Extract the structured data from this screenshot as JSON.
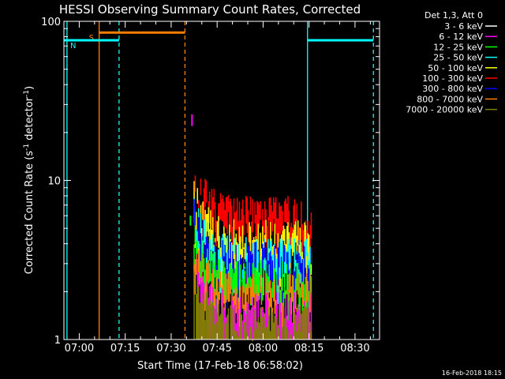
{
  "chart_data": {
    "type": "line",
    "title": "HESSI Observing Summary Count Rates, Corrected",
    "xlabel": "Start Time (17-Feb-18 06:58:02)",
    "ylabel": "Corrected Count Rate (s",
    "ylabel_sup1": "-1",
    "ylabel_mid": " detector",
    "ylabel_sup2": "-1",
    "ylabel_end": ")",
    "y_scale": "log",
    "ylim": [
      1,
      100
    ],
    "xlim_minutes": [
      -5,
      98
    ],
    "x_ticks": [
      {
        "label": "07:00",
        "min": 0
      },
      {
        "label": "07:15",
        "min": 15
      },
      {
        "label": "07:30",
        "min": 30
      },
      {
        "label": "07:45",
        "min": 45
      },
      {
        "label": "08:00",
        "min": 60
      },
      {
        "label": "08:15",
        "min": 75
      },
      {
        "label": "08:30",
        "min": 90
      }
    ],
    "y_ticks": [
      {
        "label": "1",
        "value": 1
      },
      {
        "label": "10",
        "value": 10
      },
      {
        "label": "100",
        "value": 100
      }
    ],
    "legend": {
      "header": "Det 1,3, Att 0",
      "placement": "right"
    },
    "series": [
      {
        "name": "3 - 6 keV",
        "color": "#ffffff",
        "level": 9
      },
      {
        "name": "6 - 12 keV",
        "color": "#ff00ff",
        "level": 1.6
      },
      {
        "name": "12 - 25 keV",
        "color": "#00ff00",
        "level": 2.6
      },
      {
        "name": "25 - 50 keV",
        "color": "#00ffff",
        "level": 3.6
      },
      {
        "name": "50 - 100 keV",
        "color": "#ffff00",
        "level": 4.6
      },
      {
        "name": "100 - 300 keV",
        "color": "#ff0000",
        "level": 6.4
      },
      {
        "name": "300 - 800 keV",
        "color": "#0000ff",
        "level": 3.4
      },
      {
        "name": "800 - 7000 keV",
        "color": "#ff8000",
        "level": 2.1
      },
      {
        "name": "7000 - 20000 keV",
        "color": "#808000",
        "level": 1.3
      }
    ],
    "burst": {
      "start_min": 37.5,
      "end_min": 76,
      "peak": 12
    },
    "annotations": [
      {
        "label": "S",
        "color": "#ff8000",
        "start_min": 6.5,
        "end_min": 34.5,
        "value": 85
      },
      {
        "label": "N",
        "color": "#00ffff",
        "start_min": -5,
        "end_min": 13,
        "value": 76
      },
      {
        "label": "",
        "color": "#00ffff",
        "start_min": 74.5,
        "end_min": 96,
        "value": 76
      }
    ],
    "vlines": [
      {
        "min": -4,
        "color": "#00ffff",
        "dashed": false
      },
      {
        "min": 6.5,
        "color": "#ff8000",
        "dashed": false
      },
      {
        "min": 13,
        "color": "#00ffff",
        "dashed": true
      },
      {
        "min": 34.5,
        "color": "#ff8000",
        "dashed": true
      },
      {
        "min": 74.5,
        "color": "#00ffff",
        "dashed": false
      },
      {
        "min": 96,
        "color": "#00ffff",
        "dashed": true
      }
    ],
    "grid": false
  },
  "timestamp": "16-Feb-2018 18:15"
}
